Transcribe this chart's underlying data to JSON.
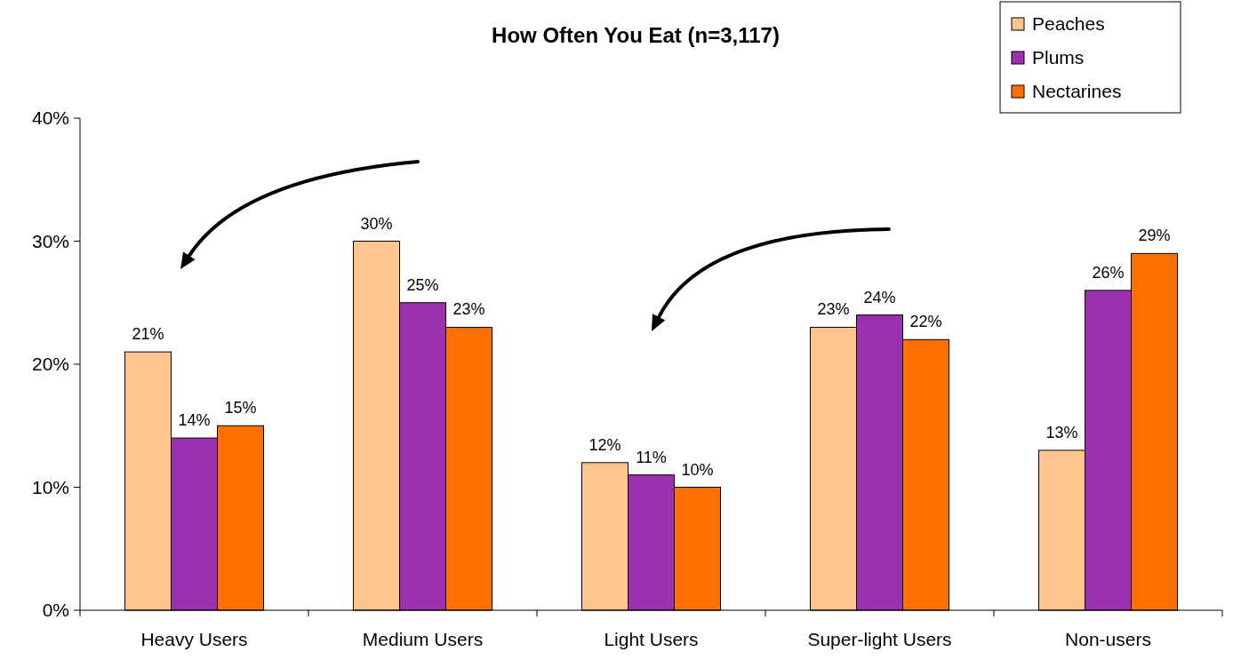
{
  "chart_data": {
    "type": "bar",
    "title": "How Often You Eat (n=3,117)",
    "categories": [
      "Heavy Users",
      "Medium Users",
      "Light Users",
      "Super-light Users",
      "Non-users"
    ],
    "series": [
      {
        "name": "Peaches",
        "color": "#ffc58c",
        "values": [
          21,
          30,
          12,
          23,
          13
        ],
        "value_labels": [
          "21%",
          "30%",
          "12%",
          "23%",
          "13%"
        ]
      },
      {
        "name": "Plums",
        "color": "#9b30b0",
        "values": [
          14,
          25,
          11,
          24,
          26
        ],
        "value_labels": [
          "14%",
          "25%",
          "11%",
          "24%",
          "26%"
        ]
      },
      {
        "name": "Nectarines",
        "color": "#ff7000",
        "values": [
          15,
          23,
          10,
          22,
          29
        ],
        "value_labels": [
          "15%",
          "23%",
          "10%",
          "22%",
          "29%"
        ]
      }
    ],
    "ylim": [
      0,
      40
    ],
    "yticks": [
      {
        "value": 0,
        "label": "0%"
      },
      {
        "value": 10,
        "label": "10%"
      },
      {
        "value": 20,
        "label": "20%"
      },
      {
        "value": 30,
        "label": "30%"
      },
      {
        "value": 40,
        "label": "40%"
      }
    ],
    "legend": "top right",
    "grid": false
  }
}
